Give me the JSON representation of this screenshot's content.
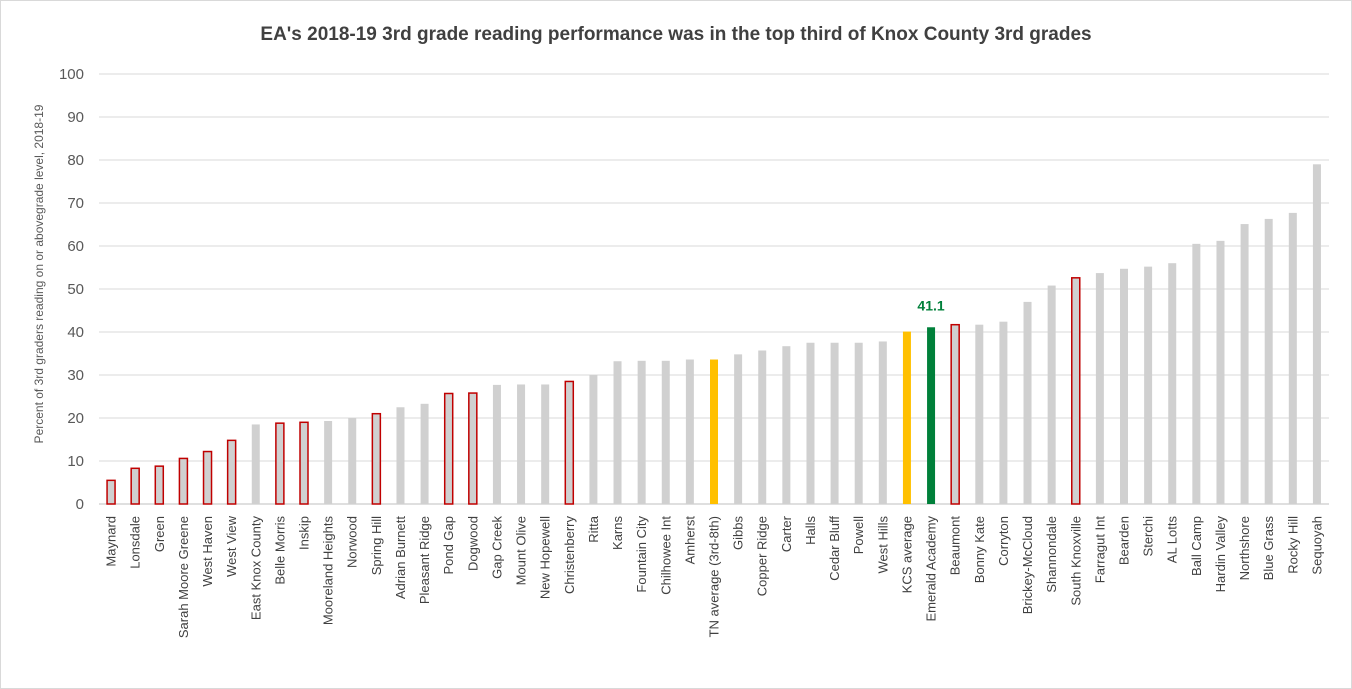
{
  "chart_data": {
    "type": "bar",
    "title": "EA's 2018-19 3rd grade reading performance was in the top third of Knox County 3rd grades",
    "xlabel": "",
    "ylabel": "Percent of 3rd graders reading on or abovegrade level, 2018-19",
    "ylim": [
      0,
      100
    ],
    "yticks": [
      0,
      10,
      20,
      30,
      40,
      50,
      60,
      70,
      80,
      90,
      100
    ],
    "grid": true,
    "legend": "none",
    "colors": {
      "normal": "#d0d0d0",
      "highlight_fill": "#d0d0d0",
      "highlight_stroke": "#c00000",
      "average": "#ffc000",
      "emerald": "#00803a",
      "label_green": "#00803a"
    },
    "categories": [
      "Maynard",
      "Lonsdale",
      "Green",
      "Sarah Moore Greene",
      "West Haven",
      "West View",
      "East Knox County",
      "Belle Morris",
      "Inskip",
      "Mooreland Heights",
      "Norwood",
      "Spring Hill",
      "Adrian Burnett",
      "Pleasant Ridge",
      "Pond Gap",
      "Dogwood",
      "Gap Creek",
      "Mount Olive",
      "New Hopewell",
      "Christenberry",
      "Ritta",
      "Karns",
      "Fountain City",
      "Chilhowee Int",
      "Amherst",
      "TN average (3rd-8th)",
      "Gibbs",
      "Copper Ridge",
      "Carter",
      "Halls",
      "Cedar Bluff",
      "Powell",
      "West Hills",
      "KCS average",
      "Emerald Academy",
      "Beaumont",
      "Bonny Kate",
      "Corryton",
      "Brickey-McCloud",
      "Shannondale",
      "South Knoxville",
      "Farragut Int",
      "Bearden",
      "Sterchi",
      "AL Lotts",
      "Ball Camp",
      "Hardin Valley",
      "Northshore",
      "Blue Grass",
      "Rocky Hill",
      "Sequoyah"
    ],
    "values": [
      5.5,
      8.3,
      8.8,
      10.6,
      12.2,
      14.8,
      18.5,
      18.8,
      19.0,
      19.3,
      20.0,
      21.0,
      22.5,
      23.3,
      25.7,
      25.8,
      27.7,
      27.8,
      27.8,
      28.5,
      30.0,
      33.2,
      33.3,
      33.3,
      33.6,
      33.6,
      34.8,
      35.7,
      36.7,
      37.5,
      37.5,
      37.5,
      37.8,
      40.1,
      41.1,
      41.7,
      41.7,
      42.4,
      47.0,
      50.8,
      52.6,
      53.7,
      54.7,
      55.2,
      56.0,
      60.5,
      61.2,
      65.1,
      66.3,
      67.7,
      79.0
    ],
    "bar_kinds": [
      "highlight",
      "highlight",
      "highlight",
      "highlight",
      "highlight",
      "highlight",
      "normal",
      "highlight",
      "highlight",
      "normal",
      "normal",
      "highlight",
      "normal",
      "normal",
      "highlight",
      "highlight",
      "normal",
      "normal",
      "normal",
      "highlight",
      "normal",
      "normal",
      "normal",
      "normal",
      "normal",
      "average",
      "normal",
      "normal",
      "normal",
      "normal",
      "normal",
      "normal",
      "normal",
      "average",
      "emerald",
      "highlight",
      "normal",
      "normal",
      "normal",
      "normal",
      "highlight",
      "normal",
      "normal",
      "normal",
      "normal",
      "normal",
      "normal",
      "normal",
      "normal",
      "normal",
      "normal"
    ],
    "annotations": [
      {
        "category": "Emerald Academy",
        "text": "41.1"
      }
    ]
  }
}
